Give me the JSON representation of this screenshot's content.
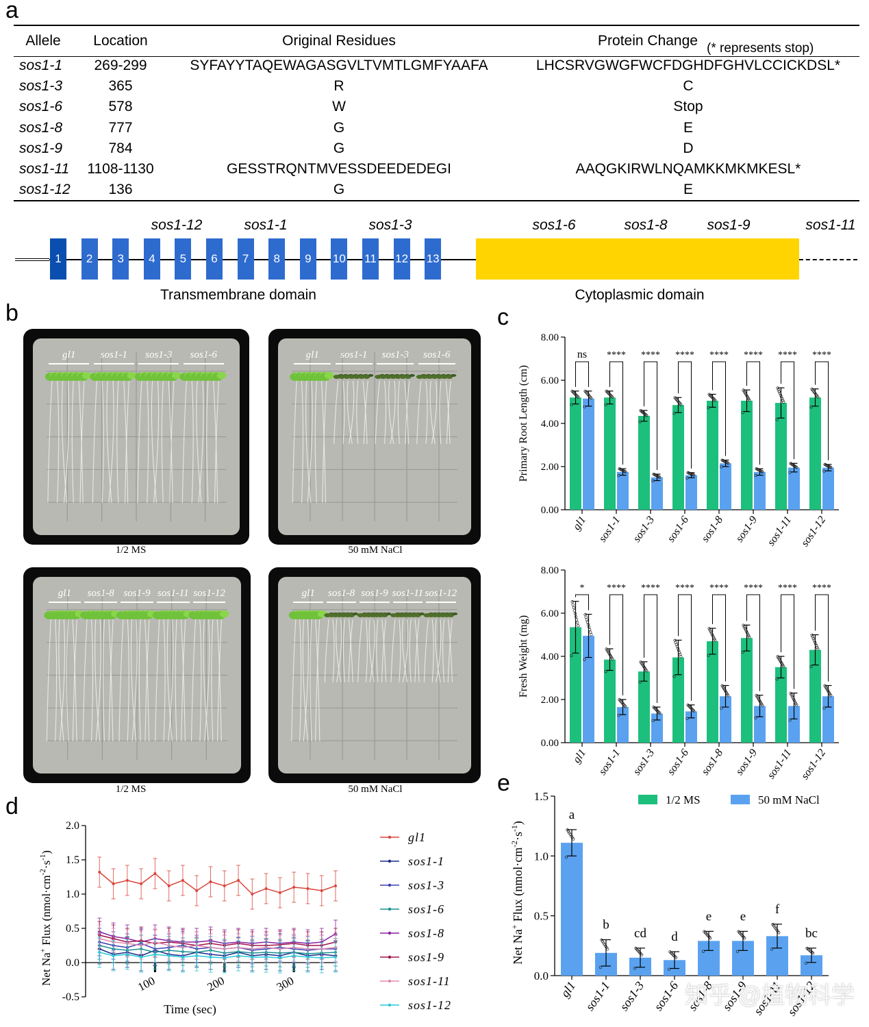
{
  "panel_labels": {
    "a": "a",
    "b": "b",
    "c": "c",
    "d": "d",
    "e": "e"
  },
  "table": {
    "headers": {
      "allele": "Allele",
      "location": "Location",
      "original": "Original Residues",
      "protein": "Protein Change",
      "note": "(* represents stop)"
    },
    "rows": [
      {
        "allele": "sos1-1",
        "location": "269-299",
        "original": "SYFAYYTAQEWAGASGVLTVMTLGMFYAAFA",
        "protein": "LHCSRVGWGFWCFDGHDFGHVLCCICKDSL*"
      },
      {
        "allele": "sos1-3",
        "location": "365",
        "original": "R",
        "protein": "C"
      },
      {
        "allele": "sos1-6",
        "location": "578",
        "original": "W",
        "protein": "Stop"
      },
      {
        "allele": "sos1-8",
        "location": "777",
        "original": "G",
        "protein": "E"
      },
      {
        "allele": "sos1-9",
        "location": "784",
        "original": "G",
        "protein": "D"
      },
      {
        "allele": "sos1-11",
        "location": "1108-1130",
        "original": "GESSTRQNTMVESSDEEDEDEGI",
        "protein": "AAQGKIRWLNQAMKKMKMKESL*"
      },
      {
        "allele": "sos1-12",
        "location": "136",
        "original": "G",
        "protein": "E"
      }
    ]
  },
  "gene_model": {
    "exons": [
      "1",
      "2",
      "3",
      "4",
      "5",
      "6",
      "7",
      "8",
      "9",
      "10",
      "11",
      "12",
      "13"
    ],
    "mutation_labels": [
      "sos1-12",
      "sos1-1",
      "sos1-3",
      "sos1-6",
      "sos1-8",
      "sos1-9",
      "sos1-11"
    ],
    "domains": {
      "transmembrane": "Transmembrane domain",
      "cytoplasmic": "Cytoplasmic domain"
    },
    "colors": {
      "exon": "#2e6bcf",
      "cytoplasmic": "#ffd400"
    }
  },
  "plates": {
    "top_left": {
      "genotypes": [
        "gl1",
        "sos1-1",
        "sos1-3",
        "sos1-6"
      ],
      "caption": "1/2 MS"
    },
    "top_right": {
      "genotypes": [
        "gl1",
        "sos1-1",
        "sos1-3",
        "sos1-6"
      ],
      "caption": "50 mM NaCl"
    },
    "bottom_left": {
      "genotypes": [
        "gl1",
        "sos1-8",
        "sos1-9",
        "sos1-11",
        "sos1-12"
      ],
      "caption": "1/2 MS"
    },
    "bottom_right": {
      "genotypes": [
        "gl1",
        "sos1-8",
        "sos1-9",
        "sos1-11",
        "sos1-12"
      ],
      "caption": "50 mM NaCl"
    }
  },
  "chart_data": [
    {
      "id": "c_root",
      "type": "bar",
      "ylabel": "Primary Root Length (cm)",
      "ylim": [
        0,
        8
      ],
      "yticks": [
        "0.00",
        "2.00",
        "4.00",
        "6.00",
        "8.00"
      ],
      "categories": [
        "gl1",
        "sos1-1",
        "sos1-3",
        "sos1-6",
        "sos1-8",
        "sos1-9",
        "sos1-11",
        "sos1-12"
      ],
      "series": [
        {
          "name": "1/2 MS",
          "color": "#1dbf7c",
          "values": [
            5.2,
            5.2,
            4.35,
            4.85,
            5.05,
            5.05,
            4.95,
            5.2
          ],
          "err": [
            0.3,
            0.3,
            0.25,
            0.35,
            0.3,
            0.5,
            0.7,
            0.4
          ]
        },
        {
          "name": "50 mM NaCl",
          "color": "#5aa2f0",
          "values": [
            5.15,
            1.75,
            1.5,
            1.6,
            2.15,
            1.75,
            1.95,
            1.95
          ],
          "err": [
            0.35,
            0.15,
            0.15,
            0.12,
            0.15,
            0.15,
            0.2,
            0.15
          ]
        }
      ],
      "significance": [
        "ns",
        "****",
        "****",
        "****",
        "****",
        "****",
        "****",
        "****"
      ]
    },
    {
      "id": "c_weight",
      "type": "bar",
      "ylabel": "Fresh Weight (mg)",
      "ylim": [
        0,
        8
      ],
      "yticks": [
        "0.00",
        "2.00",
        "4.00",
        "6.00",
        "8.00"
      ],
      "categories": [
        "gl1",
        "sos1-1",
        "sos1-3",
        "sos1-6",
        "sos1-8",
        "sos1-9",
        "sos1-11",
        "sos1-12"
      ],
      "series": [
        {
          "name": "1/2 MS",
          "color": "#1dbf7c",
          "values": [
            5.35,
            3.85,
            3.3,
            3.95,
            4.7,
            4.85,
            3.5,
            4.3
          ],
          "err": [
            1.2,
            0.5,
            0.45,
            0.8,
            0.6,
            0.6,
            0.5,
            0.7
          ]
        },
        {
          "name": "50 mM NaCl",
          "color": "#5aa2f0",
          "values": [
            4.95,
            1.65,
            1.35,
            1.45,
            2.15,
            1.7,
            1.7,
            2.15
          ],
          "err": [
            1.0,
            0.35,
            0.3,
            0.3,
            0.5,
            0.5,
            0.6,
            0.5
          ]
        }
      ],
      "significance": [
        "*",
        "****",
        "****",
        "****",
        "****",
        "****",
        "****",
        "****"
      ]
    },
    {
      "id": "d_flux",
      "type": "line",
      "xlabel": "Time (sec)",
      "ylabel_main": "Net Na",
      "ylabel_sup": "+",
      "ylabel_rest": " Flux (nmol·cm",
      "ylabel_sup2": "-2",
      "ylabel_mid": "·s",
      "ylabel_sup3": "-1",
      "ylabel_end": ")",
      "xlim": [
        0,
        360
      ],
      "ylim": [
        -0.5,
        2.0
      ],
      "xticks": [
        "100",
        "200",
        "300"
      ],
      "yticks": [
        "-0.5",
        "0.0",
        "0.5",
        "1.0",
        "1.5",
        "2.0"
      ],
      "x": [
        20,
        40,
        60,
        80,
        100,
        120,
        140,
        160,
        180,
        200,
        220,
        240,
        260,
        280,
        300,
        320,
        340,
        360
      ],
      "series": [
        {
          "name": "gl1",
          "color": "#d9453c",
          "values": [
            1.32,
            1.15,
            1.2,
            1.15,
            1.3,
            1.12,
            1.2,
            1.05,
            1.18,
            1.12,
            1.2,
            1.0,
            1.08,
            1.02,
            1.1,
            1.08,
            1.05,
            1.12
          ],
          "err": 0.22
        },
        {
          "name": "sos1-1",
          "color": "#1a2a8a",
          "values": [
            0.2,
            0.12,
            0.15,
            0.1,
            0.18,
            0.12,
            0.1,
            0.15,
            0.12,
            0.1,
            0.15,
            0.1,
            0.12,
            0.1,
            0.15,
            0.1,
            0.12,
            0.1
          ],
          "err": 0.22
        },
        {
          "name": "sos1-3",
          "color": "#3b3fb0",
          "values": [
            0.3,
            0.25,
            0.22,
            0.28,
            0.2,
            0.22,
            0.25,
            0.2,
            0.22,
            0.2,
            0.22,
            0.18,
            0.2,
            0.22,
            0.2,
            0.18,
            0.2,
            0.2
          ],
          "err": 0.2
        },
        {
          "name": "sos1-6",
          "color": "#1a8f8f",
          "values": [
            0.25,
            0.2,
            0.18,
            0.2,
            0.15,
            0.18,
            0.16,
            0.15,
            0.18,
            0.14,
            0.16,
            0.14,
            0.15,
            0.14,
            0.15,
            0.13,
            0.14,
            0.15
          ],
          "err": 0.2
        },
        {
          "name": "sos1-8",
          "color": "#8a1fa0",
          "values": [
            0.45,
            0.38,
            0.35,
            0.3,
            0.35,
            0.32,
            0.3,
            0.3,
            0.32,
            0.28,
            0.3,
            0.28,
            0.3,
            0.28,
            0.3,
            0.28,
            0.3,
            0.42
          ],
          "err": 0.2
        },
        {
          "name": "sos1-9",
          "color": "#a0124a",
          "values": [
            0.4,
            0.35,
            0.3,
            0.32,
            0.28,
            0.3,
            0.28,
            0.25,
            0.28,
            0.25,
            0.28,
            0.25,
            0.25,
            0.26,
            0.28,
            0.25,
            0.25,
            0.3
          ],
          "err": 0.2
        },
        {
          "name": "sos1-11",
          "color": "#e08ab0",
          "values": [
            0.35,
            0.3,
            0.28,
            0.25,
            0.3,
            0.25,
            0.22,
            0.25,
            0.22,
            0.2,
            0.22,
            0.2,
            0.22,
            0.2,
            0.22,
            0.2,
            0.2,
            0.22
          ],
          "err": 0.2
        },
        {
          "name": "sos1-12",
          "color": "#28c8d8",
          "values": [
            0.15,
            0.1,
            0.12,
            0.08,
            0.12,
            0.1,
            0.08,
            0.1,
            0.08,
            0.07,
            0.1,
            0.08,
            0.08,
            0.07,
            0.1,
            0.08,
            0.07,
            0.08
          ],
          "err": 0.22
        }
      ]
    },
    {
      "id": "e_flux",
      "type": "bar",
      "ylabel_main": "Net Na",
      "ylabel_sup": "+",
      "ylabel_rest": " Flux (nmol·cm",
      "ylabel_sup2": "-2",
      "ylabel_mid": "·s",
      "ylabel_sup3": "-1",
      "ylabel_end": ")",
      "ylim": [
        0,
        1.5
      ],
      "yticks": [
        "0.0",
        "0.5",
        "1.0",
        "1.5"
      ],
      "categories": [
        "gl1",
        "sos1-1",
        "sos1-3",
        "sos1-6",
        "sos1-8",
        "sos1-9",
        "sos1-11",
        "sos1-12"
      ],
      "values": [
        1.11,
        0.19,
        0.15,
        0.13,
        0.29,
        0.29,
        0.33,
        0.17
      ],
      "err": [
        0.11,
        0.11,
        0.08,
        0.07,
        0.08,
        0.08,
        0.1,
        0.06
      ],
      "letters": [
        "a",
        "b",
        "cd",
        "d",
        "e",
        "e",
        "f",
        "bc"
      ],
      "color": "#5aa2f0",
      "legend": [
        {
          "name": "1/2 MS",
          "color": "#1dbf7c"
        },
        {
          "name": "50 mM NaCl",
          "color": "#5aa2f0"
        }
      ]
    }
  ],
  "watermark": "知乎 @植物科学"
}
